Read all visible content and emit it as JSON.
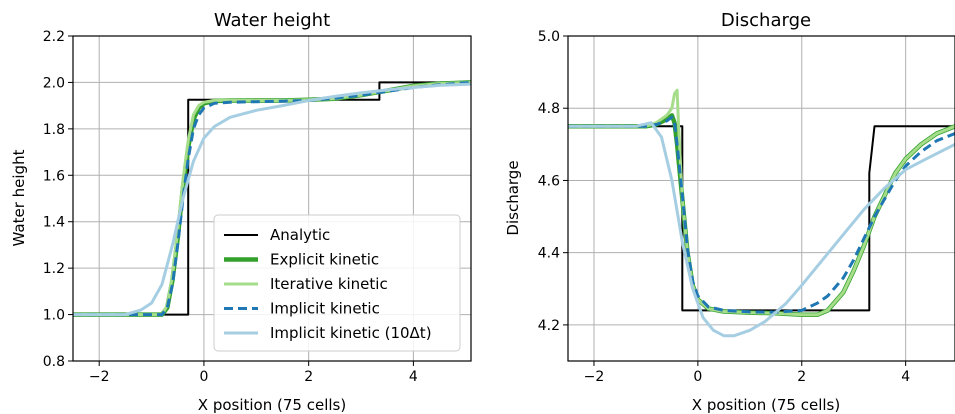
{
  "chart_data": [
    {
      "type": "line",
      "title": "Water height",
      "xlabel": "X position (75 cells)",
      "ylabel": "Water height",
      "xlim": [
        -2.5,
        5.1
      ],
      "ylim": [
        0.8,
        2.2
      ],
      "xticks": [
        -2,
        0,
        2,
        4
      ],
      "yticks": [
        0.8,
        1.0,
        1.2,
        1.4,
        1.6,
        1.8,
        2.0,
        2.2
      ],
      "xtick_labels": [
        "−2",
        "0",
        "2",
        "4"
      ],
      "ytick_labels": [
        "0.8",
        "1.0",
        "1.2",
        "1.4",
        "1.6",
        "1.8",
        "2.0",
        "2.2"
      ],
      "grid": true,
      "legend_position": "lower-right",
      "series": [
        {
          "name": "Analytic",
          "color": "#000000",
          "style": "solid",
          "width": 2,
          "points": [
            [
              -2.5,
              1.0
            ],
            [
              -0.3,
              1.0
            ],
            [
              -0.3,
              1.925
            ],
            [
              3.35,
              1.925
            ],
            [
              3.35,
              2.0
            ],
            [
              5.1,
              2.0
            ]
          ]
        },
        {
          "name": "Explicit kinetic",
          "color": "#33a02c",
          "style": "solid",
          "width": 4.5,
          "points": [
            [
              -2.5,
              1.0
            ],
            [
              -0.8,
              1.0
            ],
            [
              -0.7,
              1.03
            ],
            [
              -0.6,
              1.15
            ],
            [
              -0.5,
              1.33
            ],
            [
              -0.4,
              1.55
            ],
            [
              -0.3,
              1.72
            ],
            [
              -0.2,
              1.84
            ],
            [
              -0.1,
              1.89
            ],
            [
              0.0,
              1.91
            ],
            [
              0.2,
              1.92
            ],
            [
              0.5,
              1.922
            ],
            [
              1.0,
              1.922
            ],
            [
              1.5,
              1.922
            ],
            [
              2.0,
              1.925
            ],
            [
              2.5,
              1.93
            ],
            [
              3.0,
              1.945
            ],
            [
              3.5,
              1.965
            ],
            [
              4.0,
              1.985
            ],
            [
              4.5,
              1.995
            ],
            [
              5.1,
              2.0
            ]
          ]
        },
        {
          "name": "Iterative kinetic",
          "color": "#a6dd8a",
          "style": "solid",
          "width": 3,
          "points": [
            [
              -2.5,
              1.0
            ],
            [
              -0.8,
              1.0
            ],
            [
              -0.7,
              1.04
            ],
            [
              -0.6,
              1.17
            ],
            [
              -0.5,
              1.36
            ],
            [
              -0.4,
              1.58
            ],
            [
              -0.3,
              1.75
            ],
            [
              -0.2,
              1.86
            ],
            [
              -0.1,
              1.9
            ],
            [
              0.0,
              1.915
            ],
            [
              0.2,
              1.922
            ],
            [
              0.5,
              1.923
            ],
            [
              1.0,
              1.922
            ],
            [
              1.5,
              1.922
            ],
            [
              2.0,
              1.925
            ],
            [
              2.5,
              1.93
            ],
            [
              3.0,
              1.945
            ],
            [
              3.5,
              1.965
            ],
            [
              4.0,
              1.985
            ],
            [
              4.5,
              1.995
            ],
            [
              5.1,
              2.0
            ]
          ]
        },
        {
          "name": "Implicit kinetic",
          "color": "#1f78b4",
          "style": "dashed",
          "width": 3,
          "points": [
            [
              -2.5,
              1.0
            ],
            [
              -0.8,
              1.0
            ],
            [
              -0.7,
              1.03
            ],
            [
              -0.6,
              1.13
            ],
            [
              -0.5,
              1.3
            ],
            [
              -0.4,
              1.5
            ],
            [
              -0.3,
              1.67
            ],
            [
              -0.2,
              1.8
            ],
            [
              -0.1,
              1.86
            ],
            [
              0.0,
              1.89
            ],
            [
              0.2,
              1.91
            ],
            [
              0.5,
              1.915
            ],
            [
              1.0,
              1.917
            ],
            [
              1.5,
              1.919
            ],
            [
              2.0,
              1.922
            ],
            [
              2.5,
              1.932
            ],
            [
              3.0,
              1.945
            ],
            [
              3.5,
              1.962
            ],
            [
              4.0,
              1.978
            ],
            [
              4.5,
              1.99
            ],
            [
              5.1,
              2.0
            ]
          ]
        },
        {
          "name": "Implicit kinetic (10Δt)",
          "color": "#a6cee3",
          "style": "solid",
          "width": 3,
          "points": [
            [
              -2.5,
              1.0
            ],
            [
              -1.5,
              1.0
            ],
            [
              -1.2,
              1.02
            ],
            [
              -1.0,
              1.05
            ],
            [
              -0.8,
              1.13
            ],
            [
              -0.6,
              1.3
            ],
            [
              -0.4,
              1.5
            ],
            [
              -0.2,
              1.66
            ],
            [
              0.0,
              1.76
            ],
            [
              0.2,
              1.81
            ],
            [
              0.5,
              1.85
            ],
            [
              1.0,
              1.88
            ],
            [
              1.5,
              1.9
            ],
            [
              2.0,
              1.922
            ],
            [
              2.5,
              1.94
            ],
            [
              3.0,
              1.955
            ],
            [
              3.5,
              1.968
            ],
            [
              4.0,
              1.978
            ],
            [
              4.5,
              1.987
            ],
            [
              5.1,
              1.993
            ]
          ]
        }
      ]
    },
    {
      "type": "line",
      "title": "Discharge",
      "xlabel": "X position (75 cells)",
      "ylabel": "Discharge",
      "xlim": [
        -2.5,
        4.95
      ],
      "ylim": [
        4.1,
        5.0
      ],
      "xticks": [
        -2,
        0,
        2,
        4
      ],
      "yticks": [
        4.2,
        4.4,
        4.6,
        4.8,
        5.0
      ],
      "xtick_labels": [
        "−2",
        "0",
        "2",
        "4"
      ],
      "ytick_labels": [
        "4.2",
        "4.4",
        "4.6",
        "4.8",
        "5.0"
      ],
      "grid": true,
      "series": [
        {
          "name": "Analytic",
          "color": "#000000",
          "style": "solid",
          "width": 2,
          "points": [
            [
              -2.5,
              4.75
            ],
            [
              -0.3,
              4.75
            ],
            [
              -0.3,
              4.24
            ],
            [
              3.3,
              4.24
            ],
            [
              3.3,
              4.62
            ],
            [
              3.4,
              4.75
            ],
            [
              4.95,
              4.75
            ]
          ]
        },
        {
          "name": "Explicit kinetic",
          "color": "#33a02c",
          "style": "solid",
          "width": 4.5,
          "points": [
            [
              -2.5,
              4.75
            ],
            [
              -1.0,
              4.75
            ],
            [
              -0.8,
              4.755
            ],
            [
              -0.6,
              4.77
            ],
            [
              -0.5,
              4.78
            ],
            [
              -0.45,
              4.76
            ],
            [
              -0.4,
              4.7
            ],
            [
              -0.3,
              4.55
            ],
            [
              -0.2,
              4.4
            ],
            [
              -0.1,
              4.31
            ],
            [
              0.0,
              4.27
            ],
            [
              0.2,
              4.245
            ],
            [
              0.5,
              4.237
            ],
            [
              1.0,
              4.234
            ],
            [
              1.5,
              4.232
            ],
            [
              2.0,
              4.228
            ],
            [
              2.3,
              4.228
            ],
            [
              2.5,
              4.24
            ],
            [
              2.8,
              4.29
            ],
            [
              3.0,
              4.35
            ],
            [
              3.2,
              4.42
            ],
            [
              3.4,
              4.5
            ],
            [
              3.6,
              4.56
            ],
            [
              3.8,
              4.62
            ],
            [
              4.0,
              4.66
            ],
            [
              4.3,
              4.7
            ],
            [
              4.6,
              4.73
            ],
            [
              4.95,
              4.75
            ]
          ]
        },
        {
          "name": "Iterative kinetic",
          "color": "#a6dd8a",
          "style": "solid",
          "width": 3,
          "points": [
            [
              -2.5,
              4.75
            ],
            [
              -1.0,
              4.75
            ],
            [
              -0.8,
              4.76
            ],
            [
              -0.6,
              4.78
            ],
            [
              -0.5,
              4.8
            ],
            [
              -0.45,
              4.84
            ],
            [
              -0.4,
              4.85
            ],
            [
              -0.37,
              4.75
            ],
            [
              -0.3,
              4.55
            ],
            [
              -0.2,
              4.4
            ],
            [
              -0.1,
              4.31
            ],
            [
              0.0,
              4.27
            ],
            [
              0.2,
              4.245
            ],
            [
              0.5,
              4.237
            ],
            [
              1.0,
              4.234
            ],
            [
              1.5,
              4.232
            ],
            [
              2.0,
              4.228
            ],
            [
              2.3,
              4.228
            ],
            [
              2.5,
              4.24
            ],
            [
              2.8,
              4.29
            ],
            [
              3.0,
              4.35
            ],
            [
              3.2,
              4.42
            ],
            [
              3.4,
              4.5
            ],
            [
              3.6,
              4.56
            ],
            [
              3.8,
              4.62
            ],
            [
              4.0,
              4.66
            ],
            [
              4.3,
              4.7
            ],
            [
              4.6,
              4.73
            ],
            [
              4.95,
              4.75
            ]
          ]
        },
        {
          "name": "Implicit kinetic",
          "color": "#1f78b4",
          "style": "dashed",
          "width": 3,
          "points": [
            [
              -2.5,
              4.75
            ],
            [
              -1.0,
              4.75
            ],
            [
              -0.8,
              4.755
            ],
            [
              -0.6,
              4.765
            ],
            [
              -0.5,
              4.775
            ],
            [
              -0.45,
              4.76
            ],
            [
              -0.4,
              4.7
            ],
            [
              -0.3,
              4.56
            ],
            [
              -0.2,
              4.41
            ],
            [
              -0.1,
              4.32
            ],
            [
              0.0,
              4.28
            ],
            [
              0.2,
              4.25
            ],
            [
              0.5,
              4.24
            ],
            [
              1.0,
              4.236
            ],
            [
              1.5,
              4.235
            ],
            [
              2.0,
              4.24
            ],
            [
              2.3,
              4.26
            ],
            [
              2.5,
              4.28
            ],
            [
              2.8,
              4.33
            ],
            [
              3.0,
              4.38
            ],
            [
              3.2,
              4.44
            ],
            [
              3.4,
              4.5
            ],
            [
              3.6,
              4.55
            ],
            [
              3.8,
              4.6
            ],
            [
              4.0,
              4.64
            ],
            [
              4.3,
              4.68
            ],
            [
              4.6,
              4.71
            ],
            [
              4.95,
              4.73
            ]
          ]
        },
        {
          "name": "Implicit kinetic (10Δt)",
          "color": "#a6cee3",
          "style": "solid",
          "width": 3,
          "points": [
            [
              -2.5,
              4.75
            ],
            [
              -1.2,
              4.75
            ],
            [
              -0.9,
              4.76
            ],
            [
              -0.7,
              4.72
            ],
            [
              -0.5,
              4.6
            ],
            [
              -0.3,
              4.43
            ],
            [
              -0.1,
              4.3
            ],
            [
              0.1,
              4.22
            ],
            [
              0.3,
              4.185
            ],
            [
              0.5,
              4.17
            ],
            [
              0.7,
              4.17
            ],
            [
              1.0,
              4.185
            ],
            [
              1.3,
              4.21
            ],
            [
              1.7,
              4.26
            ],
            [
              2.0,
              4.31
            ],
            [
              2.4,
              4.38
            ],
            [
              2.8,
              4.45
            ],
            [
              3.2,
              4.52
            ],
            [
              3.6,
              4.58
            ],
            [
              4.0,
              4.63
            ],
            [
              4.4,
              4.66
            ],
            [
              4.95,
              4.7
            ]
          ]
        }
      ]
    }
  ],
  "legend": {
    "entries": [
      "Analytic",
      "Explicit kinetic",
      "Iterative kinetic",
      "Implicit kinetic",
      "Implicit kinetic (10Δt)"
    ]
  }
}
